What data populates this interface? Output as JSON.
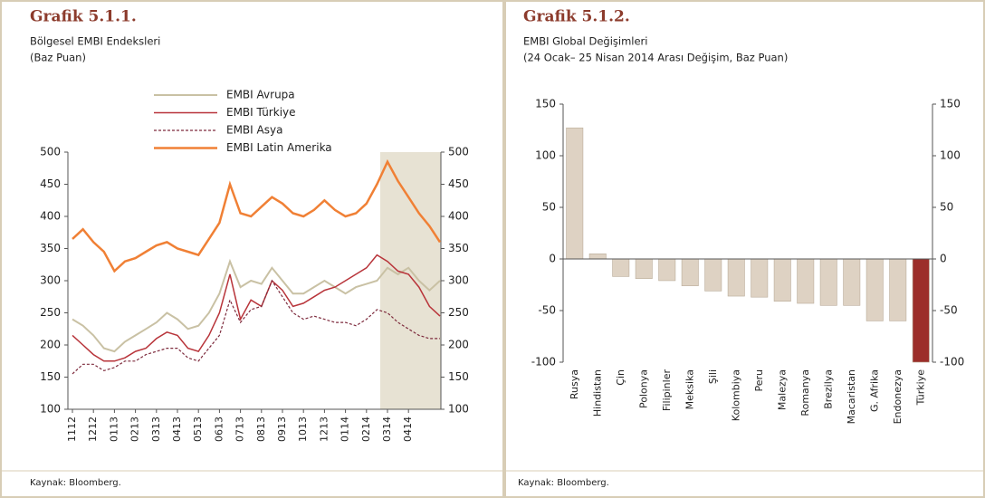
{
  "chart_data": [
    {
      "type": "line",
      "title": "Grafik 5.1.1.",
      "subtitle": "Bölgesel EMBI Endeksleri",
      "unit_note": "(Baz Puan)",
      "source": "Kaynak: Bloomberg.",
      "categories": [
        "1112",
        null,
        "1212",
        null,
        "0113",
        null,
        "0213",
        null,
        "0313",
        null,
        "0413",
        null,
        "0513",
        null,
        "0613",
        null,
        "0713",
        null,
        "0813",
        null,
        "0913",
        null,
        "1013",
        null,
        "1213",
        null,
        "0114",
        null,
        "0214",
        null,
        "0314",
        null,
        "0414",
        null,
        null,
        null
      ],
      "series": [
        {
          "name": "EMBI Avrupa",
          "color": "#c9c1a4",
          "values": [
            240,
            230,
            215,
            195,
            190,
            205,
            215,
            225,
            235,
            250,
            240,
            225,
            230,
            250,
            280,
            330,
            290,
            300,
            295,
            320,
            300,
            280,
            280,
            290,
            300,
            290,
            280,
            290,
            295,
            300,
            320,
            310,
            320,
            300,
            285,
            300
          ]
        },
        {
          "name": "EMBI Türkiye",
          "color": "#b8343a",
          "values": [
            215,
            200,
            185,
            175,
            175,
            180,
            190,
            195,
            210,
            220,
            215,
            195,
            190,
            215,
            250,
            310,
            240,
            270,
            260,
            300,
            285,
            260,
            265,
            275,
            285,
            290,
            300,
            310,
            320,
            340,
            330,
            315,
            310,
            290,
            260,
            245
          ]
        },
        {
          "name": "EMBI Asya",
          "color": "#7d2a3c",
          "dashed": true,
          "values": [
            155,
            170,
            170,
            160,
            165,
            175,
            175,
            185,
            190,
            195,
            195,
            180,
            175,
            195,
            215,
            270,
            235,
            255,
            260,
            300,
            275,
            250,
            240,
            245,
            240,
            235,
            235,
            230,
            240,
            255,
            250,
            235,
            225,
            215,
            210,
            210
          ]
        },
        {
          "name": "EMBI Latin Amerika",
          "color": "#f08035",
          "values": [
            365,
            380,
            360,
            345,
            315,
            330,
            335,
            345,
            355,
            360,
            350,
            345,
            340,
            365,
            390,
            450,
            405,
            400,
            415,
            430,
            420,
            405,
            400,
            410,
            425,
            410,
            400,
            405,
            420,
            450,
            485,
            455,
            430,
            405,
            385,
            360
          ]
        }
      ],
      "ylim": [
        100,
        500
      ],
      "yticks": [
        100,
        150,
        200,
        250,
        300,
        350,
        400,
        450,
        500
      ],
      "y2lim": [
        100,
        500
      ],
      "y2ticks": [
        100,
        150,
        200,
        250,
        300,
        350,
        400,
        450,
        500
      ],
      "grid": false
    },
    {
      "type": "bar",
      "title": "Grafik 5.1.2.",
      "subtitle": "EMBI Global Değişimleri",
      "unit_note": "(24 Ocak– 25 Nisan 2014 Arası Değişim,  Baz Puan)",
      "source": "Kaynak: Bloomberg.",
      "categories": [
        "Rusya",
        "Hindistan",
        "Çin",
        "Polonya",
        "Filipinler",
        "Meksika",
        "Şili",
        "Kolombiya",
        "Peru",
        "Malezya",
        "Romanya",
        "Brezilya",
        "Macaristan",
        "G. Afrika",
        "Endonezya",
        "Türkiye"
      ],
      "values": [
        127,
        5,
        -17,
        -19,
        -21,
        -26,
        -31,
        -36,
        -37,
        -41,
        -43,
        -45,
        -45,
        -60,
        -60,
        -100
      ],
      "colors": [
        "#ded2c3",
        "#ded2c3",
        "#ded2c3",
        "#ded2c3",
        "#ded2c3",
        "#ded2c3",
        "#ded2c3",
        "#ded2c3",
        "#ded2c3",
        "#ded2c3",
        "#ded2c3",
        "#ded2c3",
        "#ded2c3",
        "#ded2c3",
        "#ded2c3",
        "#9c2e2a"
      ],
      "ylim": [
        -100,
        150
      ],
      "yticks": [
        -100,
        -50,
        0,
        50,
        100,
        150
      ],
      "y2lim": [
        -100,
        150
      ],
      "y2ticks": [
        -100,
        -50,
        0,
        50,
        100,
        150
      ],
      "grid": false
    }
  ]
}
